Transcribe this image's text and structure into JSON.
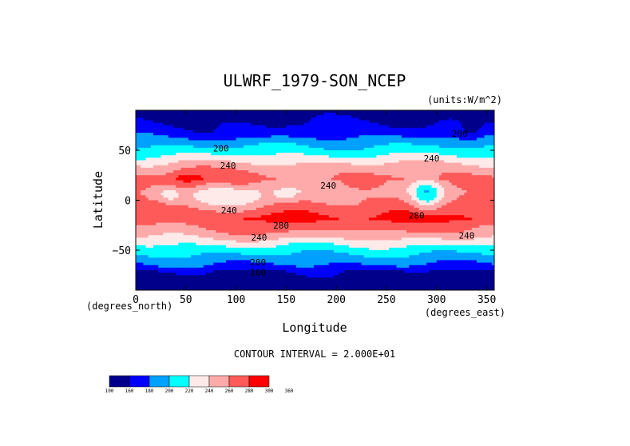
{
  "chart_data": {
    "type": "heatmap",
    "title": "ULWRF_1979-SON_NCEP",
    "units_label": "(units:W/m^2)",
    "xlabel": "Longitude",
    "ylabel": "Latitude",
    "x_units_note": "(degrees_east)",
    "y_units_note": "(degrees_north)",
    "xlim": [
      0,
      357.5
    ],
    "ylim": [
      -90,
      90
    ],
    "x_ticks": [
      0,
      50,
      100,
      150,
      200,
      250,
      300,
      350
    ],
    "y_ticks": [
      50,
      0,
      -50
    ],
    "contour_interval_text": "CONTOUR INTERVAL = 2.000E+01",
    "colorbar": {
      "levels": [
        "100",
        "160",
        "180",
        "200",
        "220",
        "240",
        "260",
        "280",
        "300",
        "360"
      ],
      "colors": [
        "#00008b",
        "#0000ff",
        "#00a0ff",
        "#00ffff",
        "#ffeaea",
        "#ffaaaa",
        "#ff5a5a",
        "#ff0000"
      ]
    },
    "contour_labels": [
      {
        "text": "200",
        "lon": 85,
        "lat": 52
      },
      {
        "text": "240",
        "lon": 92,
        "lat": 35
      },
      {
        "text": "200",
        "lon": 323,
        "lat": 67
      },
      {
        "text": "240",
        "lon": 295,
        "lat": 42
      },
      {
        "text": "240",
        "lon": 192,
        "lat": 15
      },
      {
        "text": "240",
        "lon": 93,
        "lat": -10
      },
      {
        "text": "280",
        "lon": 280,
        "lat": -15
      },
      {
        "text": "280",
        "lon": 145,
        "lat": -25
      },
      {
        "text": "240",
        "lon": 123,
        "lat": -37
      },
      {
        "text": "240",
        "lon": 330,
        "lat": -35
      },
      {
        "text": "200",
        "lon": 122,
        "lat": -62
      },
      {
        "text": "160",
        "lon": 122,
        "lat": -72
      }
    ],
    "grid": false,
    "legend": "bottom-left"
  }
}
